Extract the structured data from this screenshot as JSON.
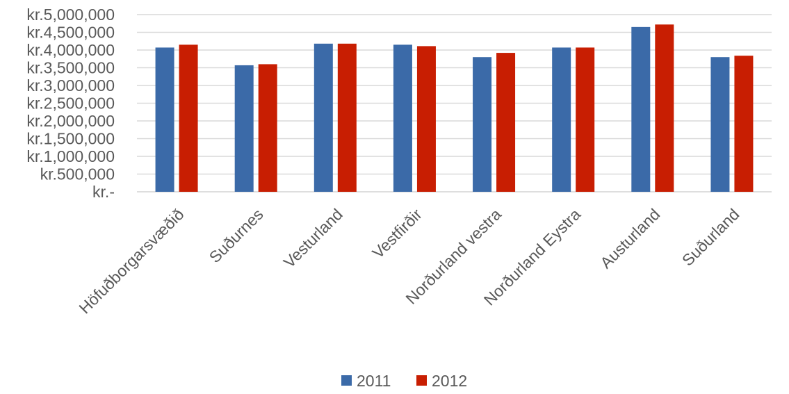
{
  "chart_data": {
    "type": "bar",
    "categories": [
      "Höfuðborgarsvæðið",
      "Suðurnes",
      "Vesturland",
      "Vestfirðir",
      "Norðurland vestra",
      "Norðurland Eystra",
      "Austurland",
      "Suðurland"
    ],
    "series": [
      {
        "name": "2011",
        "color": "#3b6aa8",
        "values": [
          4070000,
          3570000,
          4180000,
          4150000,
          3800000,
          4070000,
          4650000,
          3800000
        ]
      },
      {
        "name": "2012",
        "color": "#c81e02",
        "values": [
          4150000,
          3600000,
          4180000,
          4110000,
          3920000,
          4070000,
          4720000,
          3840000
        ]
      }
    ],
    "ylim": [
      0,
      5000000
    ],
    "yticks": [
      {
        "value": 0,
        "label": "kr.-"
      },
      {
        "value": 500000,
        "label": "kr.500,000"
      },
      {
        "value": 1000000,
        "label": "kr.1,000,000"
      },
      {
        "value": 1500000,
        "label": "kr.1,500,000"
      },
      {
        "value": 2000000,
        "label": "kr.2,000,000"
      },
      {
        "value": 2500000,
        "label": "kr.2,500,000"
      },
      {
        "value": 3000000,
        "label": "kr.3,000,000"
      },
      {
        "value": 3500000,
        "label": "kr.3,500,000"
      },
      {
        "value": 4000000,
        "label": "kr.4,000,000"
      },
      {
        "value": 4500000,
        "label": "kr.4,500,000"
      },
      {
        "value": 5000000,
        "label": "kr.5,000,000"
      }
    ],
    "grid": true,
    "legend": "bottom"
  }
}
